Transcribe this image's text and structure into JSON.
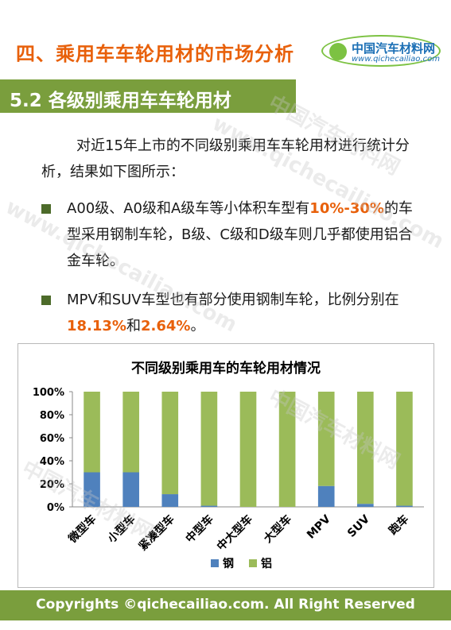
{
  "header": {
    "title": "四、乘用车车轮用材的市场分析"
  },
  "logo": {
    "name_cn": "中国汽车材料网",
    "url": "www.qichecailiao.com"
  },
  "section": {
    "title": "5.2 各级别乘用车车轮用材"
  },
  "intro": "对近15年上市的不同级别乘用车车轮用材进行统计分析，结果如下图所示：",
  "bullets": [
    {
      "pre": "A00级、A0级和A级车等小体积车型有",
      "highlight": "10%-30%",
      "post": "的车型采用钢制车轮，B级、C级和D级车则几乎都使用铝合金车轮。"
    },
    {
      "pre": "MPV和SUV车型也有部分使用钢制车轮，比例分别在",
      "highlight1": "18.13%",
      "mid": "和",
      "highlight2": "2.64%",
      "post": "。"
    }
  ],
  "chart_data": {
    "type": "bar",
    "stacked": true,
    "title": "不同级别乘用车的车轮用材情况",
    "categories": [
      "微型车",
      "小型车",
      "紧凑型车",
      "中型车",
      "中大型车",
      "大型车",
      "MPV",
      "SUV",
      "跑车"
    ],
    "series": [
      {
        "name": "钢",
        "color": "#4f81bd",
        "values": [
          30,
          30,
          11,
          1,
          0,
          0,
          18.13,
          2.64,
          1
        ]
      },
      {
        "name": "铝",
        "color": "#9bbb59",
        "values": [
          70,
          70,
          89,
          99,
          100,
          100,
          81.87,
          97.36,
          99
        ]
      }
    ],
    "y_ticks": [
      "0%",
      "20%",
      "40%",
      "60%",
      "80%",
      "100%"
    ],
    "ylim": [
      0,
      100
    ],
    "legend_position": "bottom",
    "grid": false
  },
  "watermark": {
    "cn": "中国汽车材料网",
    "url": "www.qichecailiao.com"
  },
  "footer": {
    "text": "Copyrights ©qichecailiao.com. All Right Reserved"
  }
}
